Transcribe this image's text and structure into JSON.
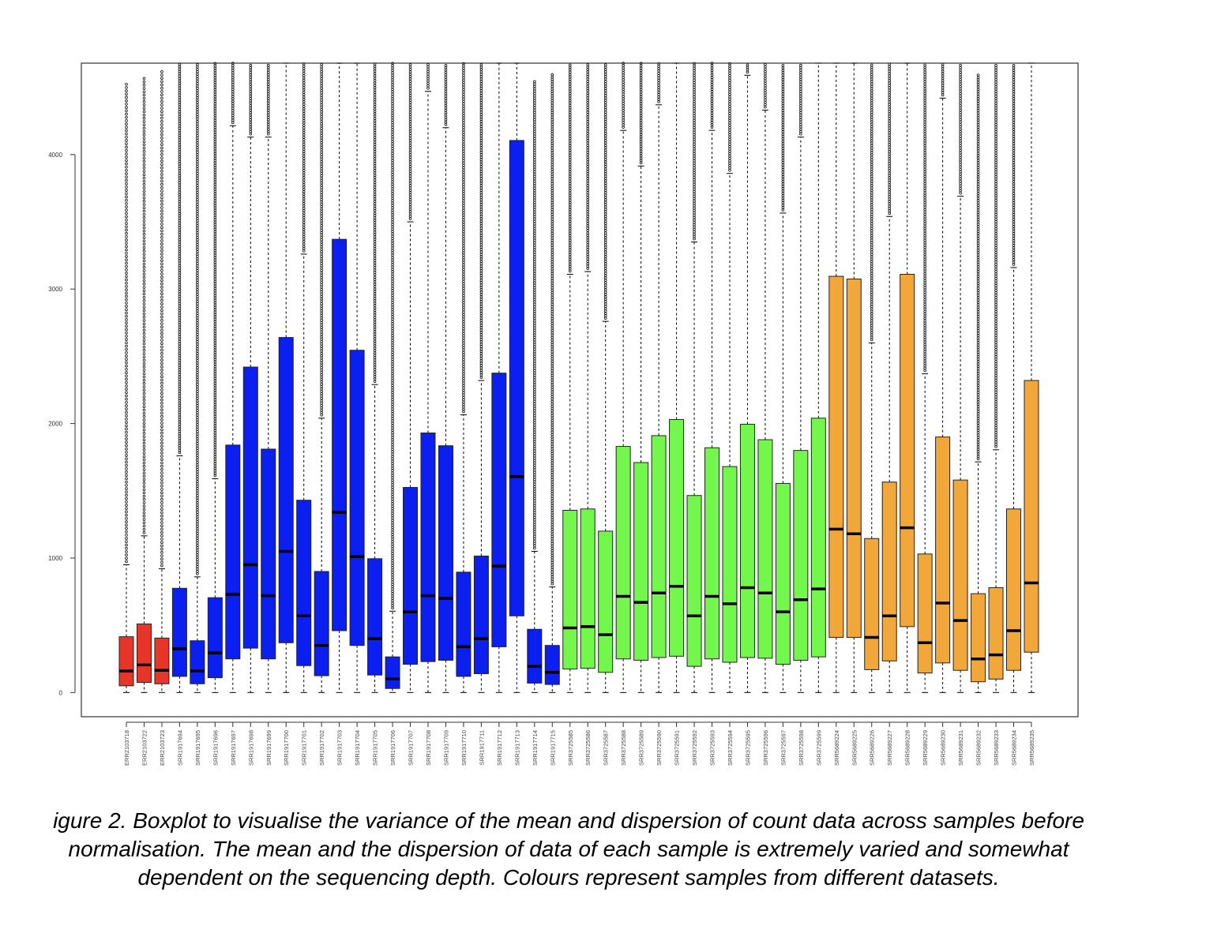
{
  "caption": "igure 2. Boxplot to visualise the variance of the mean and dispersion of count data across samples before\nnormalisation. The mean and the dispersion of data of each sample is extremely varied and somewhat\ndependent on the sequencing depth. Colours represent samples from different datasets.",
  "colors": {
    "red": "#e8352a",
    "blue": "#0a1ff0",
    "green": "#74f74c",
    "orange": "#f2a73b"
  },
  "chart_data": {
    "type": "boxplot",
    "title": "",
    "xlabel": "",
    "ylabel": "",
    "ylim": [
      -180,
      4680
    ],
    "yticks": [
      0,
      1000,
      2000,
      3000,
      4000
    ],
    "grid": false,
    "legend": "none",
    "categories": [
      "ERR2103718",
      "ERR2103722",
      "ERR2103723",
      "SRR1917694",
      "SRR1917695",
      "SRR1917696",
      "SRR1917697",
      "SRR1917698",
      "SRR1917699",
      "SRR1917700",
      "SRR1917701",
      "SRR1917702",
      "SRR1917703",
      "SRR1917704",
      "SRR1917705",
      "SRR1917706",
      "SRR1917707",
      "SRR1917708",
      "SRR1917709",
      "SRR1917710",
      "SRR1917711",
      "SRR1917712",
      "SRR1917713",
      "SRR1917714",
      "SRR1917715",
      "SRR3725585",
      "SRR3725586",
      "SRR3725587",
      "SRR3725588",
      "SRR3725589",
      "SRR3725590",
      "SRR3725591",
      "SRR3725592",
      "SRR3725593",
      "SRR3725594",
      "SRR3725595",
      "SRR3725596",
      "SRR3725597",
      "SRR3725598",
      "SRR3725599",
      "SRR5689224",
      "SRR5689225",
      "SRR5689226",
      "SRR5689227",
      "SRR5689228",
      "SRR5689229",
      "SRR5689230",
      "SRR5689231",
      "SRR5689232",
      "SRR5689233",
      "SRR5689234",
      "SRR5689235"
    ],
    "groups": [
      "red",
      "red",
      "red",
      "blue",
      "blue",
      "blue",
      "blue",
      "blue",
      "blue",
      "blue",
      "blue",
      "blue",
      "blue",
      "blue",
      "blue",
      "blue",
      "blue",
      "blue",
      "blue",
      "blue",
      "blue",
      "blue",
      "blue",
      "blue",
      "blue",
      "green",
      "green",
      "green",
      "green",
      "green",
      "green",
      "green",
      "green",
      "green",
      "green",
      "green",
      "green",
      "green",
      "green",
      "green",
      "orange",
      "orange",
      "orange",
      "orange",
      "orange",
      "orange",
      "orange",
      "orange",
      "orange",
      "orange",
      "orange",
      "orange"
    ],
    "min": [
      0,
      0,
      0,
      0,
      0,
      0,
      0,
      0,
      0,
      0,
      0,
      0,
      0,
      0,
      0,
      0,
      0,
      0,
      0,
      0,
      0,
      0,
      0,
      0,
      0,
      0,
      0,
      0,
      0,
      0,
      0,
      0,
      0,
      0,
      0,
      0,
      0,
      0,
      0,
      0,
      0,
      0,
      0,
      0,
      0,
      0,
      0,
      0,
      0,
      0,
      0,
      0
    ],
    "q1": [
      50,
      75,
      65,
      120,
      65,
      110,
      250,
      330,
      250,
      370,
      200,
      125,
      460,
      350,
      130,
      30,
      210,
      230,
      240,
      120,
      140,
      340,
      570,
      70,
      60,
      175,
      180,
      150,
      250,
      240,
      260,
      270,
      195,
      250,
      225,
      260,
      255,
      210,
      240,
      265,
      410,
      410,
      170,
      235,
      490,
      145,
      220,
      165,
      80,
      100,
      165,
      300
    ],
    "median": [
      160,
      205,
      165,
      325,
      160,
      295,
      730,
      950,
      720,
      1050,
      570,
      350,
      1340,
      1010,
      400,
      100,
      600,
      720,
      700,
      340,
      400,
      940,
      1605,
      195,
      150,
      480,
      490,
      430,
      715,
      670,
      740,
      790,
      570,
      715,
      660,
      780,
      740,
      600,
      690,
      770,
      1215,
      1180,
      410,
      570,
      1225,
      370,
      665,
      535,
      250,
      280,
      460,
      815
    ],
    "q3": [
      415,
      510,
      405,
      775,
      385,
      705,
      1840,
      2420,
      1810,
      2640,
      1430,
      900,
      3370,
      2545,
      995,
      265,
      1525,
      1930,
      1835,
      895,
      1015,
      2375,
      4105,
      470,
      350,
      1355,
      1365,
      1200,
      1830,
      1710,
      1910,
      2030,
      1465,
      1820,
      1680,
      1995,
      1880,
      1555,
      1800,
      2040,
      3095,
      3075,
      1145,
      1565,
      3110,
      1030,
      1900,
      1580,
      735,
      780,
      1365,
      2320
    ],
    "whisker_high": [
      950,
      1165,
      920,
      1760,
      860,
      1590,
      4215,
      4130,
      4130,
      4680,
      3260,
      2040,
      4680,
      4680,
      2290,
      605,
      3500,
      4470,
      4200,
      2065,
      2320,
      4680,
      4680,
      1050,
      785,
      3110,
      3130,
      2760,
      4180,
      3915,
      4370,
      4680,
      3350,
      4180,
      3860,
      4590,
      4330,
      3565,
      4130,
      4680,
      4680,
      4680,
      2600,
      3540,
      4680,
      2370,
      4420,
      3690,
      1715,
      1805,
      3160,
      4680
    ],
    "outliers_to": [
      4530,
      4590,
      4620,
      4680,
      4680,
      4680,
      4680,
      4680,
      4680,
      4680,
      4680,
      4680,
      4680,
      4680,
      4680,
      4680,
      4680,
      4680,
      4680,
      4680,
      4680,
      4680,
      4680,
      4550,
      4600,
      4680,
      4680,
      4680,
      4680,
      4680,
      4680,
      4680,
      4680,
      4680,
      4680,
      4680,
      4680,
      4680,
      4680,
      4680,
      4680,
      4680,
      4680,
      4680,
      4680,
      4680,
      4680,
      4680,
      4600,
      4680,
      4680,
      4680
    ]
  }
}
